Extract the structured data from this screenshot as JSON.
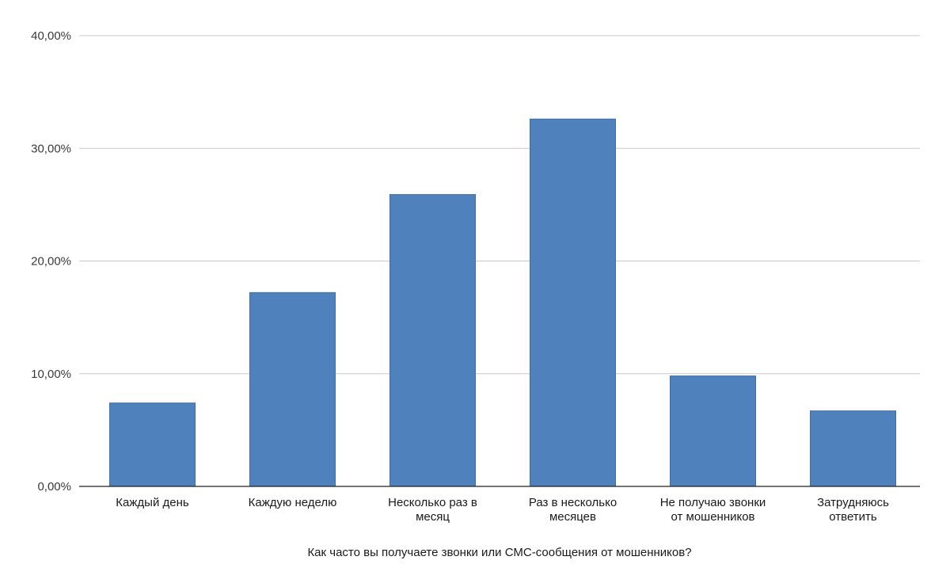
{
  "colors": {
    "bar": "#4f81bd",
    "bar_stroke": "#3f6fa6"
  },
  "chart_data": {
    "type": "bar",
    "title": "",
    "xlabel": "Как часто вы получаете звонки или СМС-сообщения от мошенников?",
    "ylabel": "",
    "ylim": [
      0,
      40
    ],
    "yticks": [
      0,
      10,
      20,
      30,
      40
    ],
    "ytick_labels": [
      "0,00%",
      "10,00%",
      "20,00%",
      "30,00%",
      "40,00%"
    ],
    "grid": true,
    "legend": "none",
    "categories": [
      [
        "Каждый день"
      ],
      [
        "Каждую неделю"
      ],
      [
        "Несколько раз в",
        "месяц"
      ],
      [
        "Раз в несколько",
        "месяцев"
      ],
      [
        "Не получаю звонки",
        "от мошенников"
      ],
      [
        "Затрудняюсь",
        "ответить"
      ]
    ],
    "values": [
      7.4,
      17.2,
      25.9,
      32.6,
      9.8,
      6.7
    ]
  }
}
